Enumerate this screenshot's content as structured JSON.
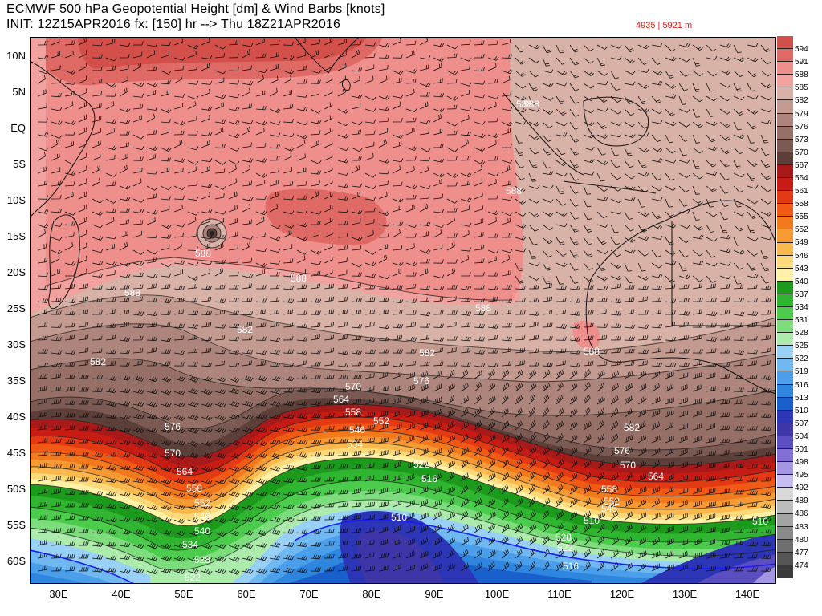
{
  "header": {
    "line1": "ECMWF 500 hPa Geopotential Height [dm] & Wind Barbs [knots]",
    "line2": "INIT: 12Z15APR2016 fx: [150] hr --> Thu 18Z21APR2016",
    "range": "4935 | 5921 m"
  },
  "axes": {
    "lat_labels": [
      "10N",
      "5N",
      "EQ",
      "5S",
      "10S",
      "15S",
      "20S",
      "25S",
      "30S",
      "35S",
      "40S",
      "45S",
      "50S",
      "55S",
      "60S"
    ],
    "lon_labels": [
      "30E",
      "40E",
      "50E",
      "60E",
      "70E",
      "80E",
      "90E",
      "100E",
      "110E",
      "120E",
      "130E",
      "140E"
    ]
  },
  "colorbar": {
    "levels": [
      {
        "label": "594",
        "color": "#d24f4a"
      },
      {
        "label": "591",
        "color": "#df6a65"
      },
      {
        "label": "588",
        "color": "#ef8f8c"
      },
      {
        "label": "585",
        "color": "#f1a29e"
      },
      {
        "label": "582",
        "color": "#d8b1a7"
      },
      {
        "label": "579",
        "color": "#c39a90"
      },
      {
        "label": "576",
        "color": "#ad857c"
      },
      {
        "label": "573",
        "color": "#967066"
      },
      {
        "label": "570",
        "color": "#7a5a52"
      },
      {
        "label": "567",
        "color": "#5c3f39"
      },
      {
        "label": "564",
        "color": "#a8191a"
      },
      {
        "label": "561",
        "color": "#c71c14"
      },
      {
        "label": "558",
        "color": "#e43a14"
      },
      {
        "label": "555",
        "color": "#f05a14"
      },
      {
        "label": "552",
        "color": "#f27a1d"
      },
      {
        "label": "549",
        "color": "#f79a33"
      },
      {
        "label": "546",
        "color": "#fbb94d"
      },
      {
        "label": "543",
        "color": "#fed97a"
      },
      {
        "label": "540",
        "color": "#fff1a6"
      },
      {
        "label": "537",
        "color": "#1c9a1c"
      },
      {
        "label": "534",
        "color": "#2fb52f"
      },
      {
        "label": "531",
        "color": "#4ccc4c"
      },
      {
        "label": "528",
        "color": "#7ddd7d"
      },
      {
        "label": "525",
        "color": "#acebac"
      },
      {
        "label": "522",
        "color": "#99d0f5"
      },
      {
        "label": "519",
        "color": "#6fb8f1"
      },
      {
        "label": "516",
        "color": "#4b9fea"
      },
      {
        "label": "513",
        "color": "#2f86df"
      },
      {
        "label": "510",
        "color": "#1a60cc"
      },
      {
        "label": "507",
        "color": "#2b35b5"
      },
      {
        "label": "504",
        "color": "#3d35a8"
      },
      {
        "label": "501",
        "color": "#5a4ec0"
      },
      {
        "label": "498",
        "color": "#8270d4"
      },
      {
        "label": "495",
        "color": "#a596e3"
      },
      {
        "label": "492",
        "color": "#c8bdf0"
      },
      {
        "label": "489",
        "color": "#d9d9d9"
      },
      {
        "label": "486",
        "color": "#bdbdbd"
      },
      {
        "label": "483",
        "color": "#a3a3a3"
      },
      {
        "label": "480",
        "color": "#8a8a8a"
      },
      {
        "label": "477",
        "color": "#6f6f6f"
      },
      {
        "label": "474",
        "color": "#555555"
      },
      {
        "label": "",
        "color": "#3a3a3a"
      }
    ]
  },
  "contour_labels": [
    {
      "text": "588",
      "k": "p1"
    },
    {
      "text": "588",
      "k": "p2"
    },
    {
      "text": "588",
      "k": "p3"
    },
    {
      "text": "588",
      "k": "p4"
    },
    {
      "text": "588",
      "k": "p5"
    },
    {
      "text": "588",
      "k": "p6"
    },
    {
      "text": "588",
      "k": "p7"
    },
    {
      "text": "588",
      "k": "p8"
    },
    {
      "text": "582",
      "k": "p9"
    },
    {
      "text": "582",
      "k": "p10"
    },
    {
      "text": "582",
      "k": "p11"
    },
    {
      "text": "582",
      "k": "p12"
    },
    {
      "text": "576",
      "k": "p13"
    },
    {
      "text": "576",
      "k": "p14"
    },
    {
      "text": "576",
      "k": "p15"
    },
    {
      "text": "570",
      "k": "p16"
    },
    {
      "text": "570",
      "k": "p17"
    },
    {
      "text": "570",
      "k": "p18"
    },
    {
      "text": "564",
      "k": "p19"
    },
    {
      "text": "564",
      "k": "p20"
    },
    {
      "text": "564",
      "k": "p21"
    },
    {
      "text": "558",
      "k": "p22"
    },
    {
      "text": "558",
      "k": "p23"
    },
    {
      "text": "558",
      "k": "p24"
    },
    {
      "text": "552",
      "k": "p25"
    },
    {
      "text": "552",
      "k": "p26"
    },
    {
      "text": "552",
      "k": "p27"
    },
    {
      "text": "546",
      "k": "p28"
    },
    {
      "text": "546",
      "k": "p29"
    },
    {
      "text": "546",
      "k": "p30"
    },
    {
      "text": "540",
      "k": "p31"
    },
    {
      "text": "534",
      "k": "p32"
    },
    {
      "text": "534",
      "k": "p33"
    },
    {
      "text": "528",
      "k": "p34"
    },
    {
      "text": "528",
      "k": "p35"
    },
    {
      "text": "522",
      "k": "p36"
    },
    {
      "text": "522",
      "k": "p37"
    },
    {
      "text": "522",
      "k": "p38"
    },
    {
      "text": "516",
      "k": "p39"
    },
    {
      "text": "516",
      "k": "p40"
    },
    {
      "text": "510",
      "k": "p41"
    },
    {
      "text": "510",
      "k": "p42"
    },
    {
      "text": "510",
      "k": "p43"
    },
    {
      "text": "510",
      "k": "p44"
    }
  ]
}
